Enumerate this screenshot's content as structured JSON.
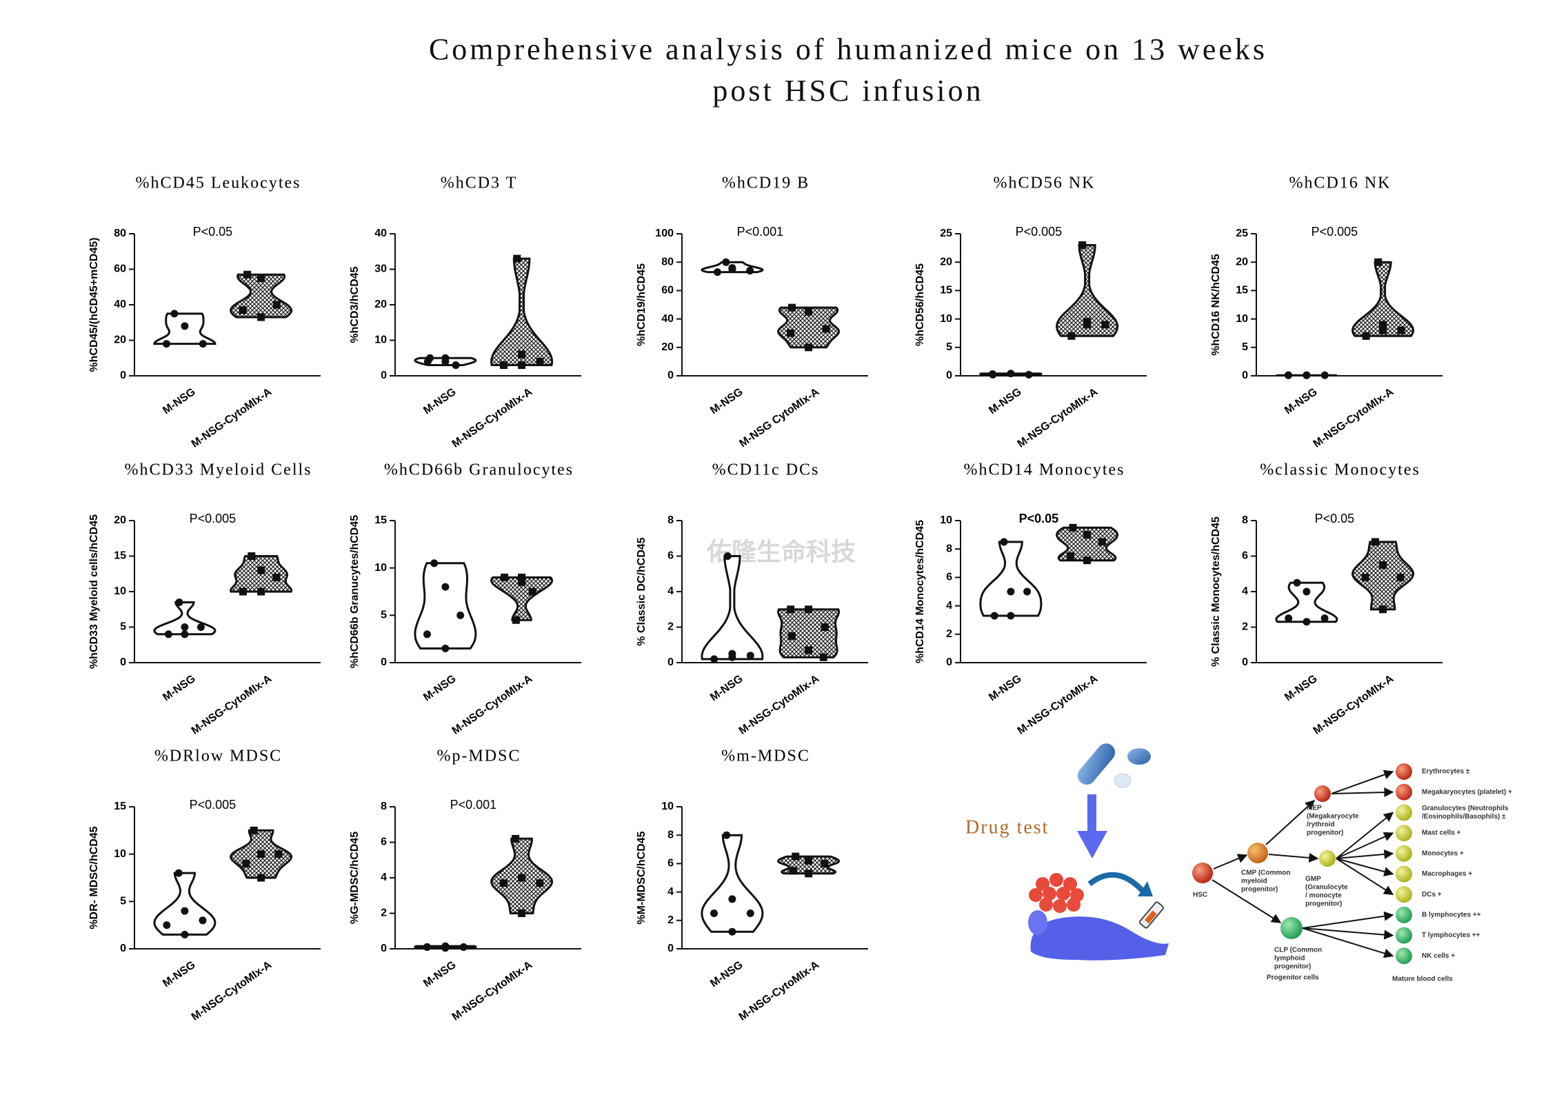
{
  "title": "Comprehensive analysis of humanized mice on 13 weeks post HSC infusion",
  "watermark": "佑隆生命科技",
  "chart_data": [
    {
      "type": "violin",
      "title": "%hCD45 Leukocytes",
      "annotation": "P<0.05",
      "y_label": "%hCD45/(hCD45+mCD45)",
      "categories": [
        "M-NSG",
        "M-NSG-CytoMIx-A"
      ],
      "values": [
        [
          35,
          28,
          18,
          18
        ],
        [
          57,
          55,
          40,
          37,
          33
        ]
      ],
      "ylim": [
        0,
        80
      ],
      "yticks": [
        0,
        20,
        40,
        60,
        80
      ]
    },
    {
      "type": "violin",
      "title": "%hCD3 T",
      "y_label": "%hCD3/hCD45",
      "categories": [
        "M-NSG",
        "M-NSG-CytoMIx-A"
      ],
      "values": [
        [
          5,
          4,
          3,
          4,
          5
        ],
        [
          33,
          6,
          4,
          3,
          3
        ]
      ],
      "ylim": [
        0,
        40
      ],
      "yticks": [
        0,
        10,
        20,
        30,
        40
      ]
    },
    {
      "type": "violin",
      "title": "%hCD19 B",
      "annotation": "P<0.001",
      "y_label": "%hCD19/hCD45",
      "categories": [
        "M-NSG",
        "M-NSG CytoMIx-A"
      ],
      "values": [
        [
          80,
          76,
          74,
          73,
          75
        ],
        [
          48,
          45,
          33,
          30,
          20
        ]
      ],
      "ylim": [
        0,
        100
      ],
      "yticks": [
        0,
        20,
        40,
        60,
        80,
        100
      ]
    },
    {
      "type": "violin",
      "title": "%hCD56 NK",
      "annotation": "P<0.005",
      "y_label": "%hCD56/hCD45",
      "categories": [
        "M-NSG",
        "M-NSG-CytoMIx-A"
      ],
      "values": [
        [
          0.3,
          0.4,
          0.2,
          0.2
        ],
        [
          23,
          9.5,
          9,
          7,
          9
        ]
      ],
      "ylim": [
        0,
        25
      ],
      "yticks": [
        0,
        5,
        10,
        15,
        20,
        25
      ]
    },
    {
      "type": "violin",
      "title": "%hCD16 NK",
      "annotation": "P<0.005",
      "y_label": "%hCD16 NK/hCD45",
      "categories": [
        "M-NSG",
        "M-NSG-CytoMIx-A"
      ],
      "values": [
        [
          0.1,
          0.1,
          0.1,
          0.1,
          0.1
        ],
        [
          20,
          9,
          8,
          7,
          8
        ]
      ],
      "ylim": [
        0,
        25
      ],
      "yticks": [
        0,
        5,
        10,
        15,
        20,
        25
      ]
    },
    {
      "type": "violin",
      "title": "%hCD33 Myeloid Cells",
      "annotation": "P<0.005",
      "y_label": "%hCD33 Myeloid cells/hCD45",
      "categories": [
        "M-NSG",
        "M-NSG-CytoMIx-A"
      ],
      "values": [
        [
          8.5,
          5,
          5,
          4,
          4
        ],
        [
          15,
          13,
          12,
          10,
          10
        ]
      ],
      "ylim": [
        0,
        20
      ],
      "yticks": [
        0,
        5,
        10,
        15,
        20
      ]
    },
    {
      "type": "violin",
      "title": "%hCD66b Granulocytes",
      "y_label": "%hCD66b Granucytes/hCD45",
      "categories": [
        "M-NSG",
        "M-NSG-CytoMIx-A"
      ],
      "values": [
        [
          10.5,
          8,
          5,
          3,
          1.5
        ],
        [
          9,
          8.5,
          7.5,
          4.5,
          9
        ]
      ],
      "ylim": [
        0,
        15
      ],
      "yticks": [
        0,
        5,
        10,
        15
      ]
    },
    {
      "type": "violin",
      "title": "%CD11c DCs",
      "y_label": "% Classic DC/hCD45",
      "categories": [
        "M-NSG",
        "M-NSG-CytoMIx-A"
      ],
      "values": [
        [
          6,
          0.5,
          0.4,
          0.2,
          0.3
        ],
        [
          3,
          3,
          2,
          1.5,
          0.7,
          0.3
        ]
      ],
      "ylim": [
        0,
        8
      ],
      "yticks": [
        0,
        2,
        4,
        6,
        8
      ]
    },
    {
      "type": "violin",
      "title": "%hCD14 Monocytes",
      "annotation": "P<0.05",
      "annotation_bold": true,
      "y_label": "%hCD14 Monocytes/hCD45",
      "categories": [
        "M-NSG",
        "M-NSG-CytoMIx-A"
      ],
      "values": [
        [
          8.5,
          5,
          5,
          3.3,
          3.3
        ],
        [
          9.5,
          9,
          8.5,
          7.5,
          7.2
        ]
      ],
      "ylim": [
        0,
        10
      ],
      "yticks": [
        0,
        2,
        4,
        6,
        8,
        10
      ]
    },
    {
      "type": "violin",
      "title": "%classic Monocytes",
      "annotation": "P<0.05",
      "y_label": "% Classic Monocytes/hCD45",
      "categories": [
        "M-NSG",
        "M-NSG-CytoMIx-A"
      ],
      "values": [
        [
          4.5,
          4,
          2.5,
          2.5,
          2.3
        ],
        [
          6.8,
          5.5,
          4.8,
          4.8,
          3
        ]
      ],
      "ylim": [
        0,
        8
      ],
      "yticks": [
        0,
        2,
        4,
        6,
        8
      ]
    },
    {
      "type": "violin",
      "title": "%DRlow MDSC",
      "annotation": "P<0.005",
      "y_label": "%DR- MDSC/hCD45",
      "categories": [
        "M-NSG",
        "M-NSG-CytoMIx-A"
      ],
      "values": [
        [
          8,
          4,
          3,
          2.5,
          1.5
        ],
        [
          12.5,
          10,
          10,
          9,
          7.5
        ]
      ],
      "ylim": [
        0,
        15
      ],
      "yticks": [
        0,
        5,
        10,
        15
      ]
    },
    {
      "type": "violin",
      "title": "%p-MDSC",
      "annotation": "P<0.001",
      "y_label": "%G-MDSC/hCD45",
      "categories": [
        "M-NSG",
        "M-NSG-CytoMIx-A"
      ],
      "values": [
        [
          0.1,
          0.15,
          0.1,
          0.1,
          0.05
        ],
        [
          6.2,
          4,
          3.7,
          3.7,
          2
        ]
      ],
      "ylim": [
        0,
        8
      ],
      "yticks": [
        0,
        2,
        4,
        6,
        8
      ]
    },
    {
      "type": "violin",
      "title": "%m-MDSC",
      "y_label": "%M-MDSC/hCD45",
      "categories": [
        "M-NSG",
        "M-NSG-CytoMIx-A"
      ],
      "values": [
        [
          8,
          3.5,
          2.5,
          2.5,
          1.2
        ],
        [
          6.5,
          6.2,
          6,
          5.5,
          5.3
        ]
      ],
      "ylim": [
        0,
        10
      ],
      "yticks": [
        0,
        2,
        4,
        6,
        8,
        10
      ]
    }
  ],
  "diagram": {
    "drug_label": "Drug test",
    "hsc": "HSC",
    "progenitors": [
      {
        "lines": [
          "CMP (Common",
          "myeloid",
          "progenitor)"
        ]
      },
      {
        "lines": [
          "MEP",
          "(Megakaryocyte",
          "/rythroid",
          "progenitor)"
        ]
      },
      {
        "lines": [
          "GMP",
          "(Granulocyte",
          "/ monocyte",
          "progenitor)"
        ]
      },
      {
        "lines": [
          "CLP (Common",
          "lymphoid",
          "progenitor)"
        ]
      }
    ],
    "progenitor_caption": "Progenitor cells",
    "mature": [
      {
        "lines": [
          "Erythrocytes ±"
        ]
      },
      {
        "lines": [
          "Megakaryocytes (platelet) +"
        ]
      },
      {
        "lines": [
          "Granulocytes (Neutrophils",
          "/Eosinophils/Basophils) ±"
        ]
      },
      {
        "lines": [
          "Mast cells +"
        ]
      },
      {
        "lines": [
          "Monocytes +"
        ]
      },
      {
        "lines": [
          "Macrophages +"
        ]
      },
      {
        "lines": [
          "DCs +"
        ]
      },
      {
        "lines": [
          "B lymphocytes ++"
        ]
      },
      {
        "lines": [
          "T lymphocytes ++"
        ]
      },
      {
        "lines": [
          "NK cells +"
        ]
      }
    ],
    "mature_caption": "Mature blood cells"
  }
}
